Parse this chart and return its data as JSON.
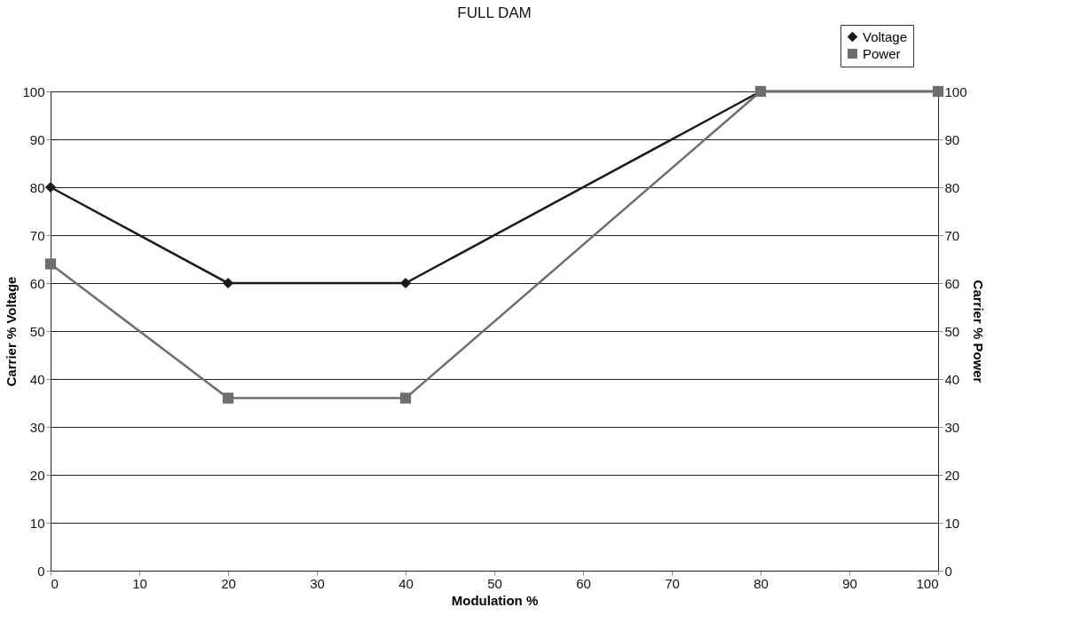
{
  "chart_data": {
    "type": "line",
    "title": "FULL DAM",
    "xlabel": "Modulation %",
    "ylabel": "Carrier % Voltage",
    "y2label": "Carrier % Power",
    "x": [
      0,
      20,
      40,
      80,
      100
    ],
    "series": [
      {
        "name": "Voltage",
        "color": "#1a1a1a",
        "marker": "diamond",
        "values": [
          80,
          60,
          60,
          100,
          100
        ]
      },
      {
        "name": "Power",
        "color": "#6e6e6e",
        "marker": "square",
        "axis": "y2",
        "values": [
          64,
          36,
          36,
          100,
          100
        ]
      }
    ],
    "xlim": [
      0,
      100
    ],
    "xticks": [
      0,
      10,
      20,
      30,
      40,
      50,
      60,
      70,
      80,
      90,
      100
    ],
    "ylim": [
      0,
      100
    ],
    "yticks": [
      0,
      10,
      20,
      30,
      40,
      50,
      60,
      70,
      80,
      90,
      100
    ],
    "y2lim": [
      0,
      100
    ],
    "y2ticks": [
      0,
      10,
      20,
      30,
      40,
      50,
      60,
      70,
      80,
      90,
      100
    ],
    "grid": "y",
    "legend": "top right",
    "line_style": "solid"
  }
}
